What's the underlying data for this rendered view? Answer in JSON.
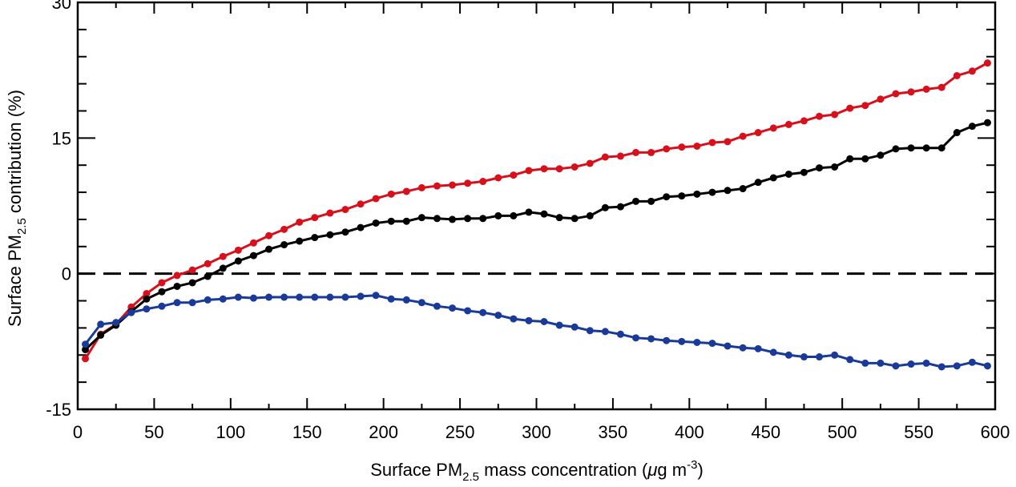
{
  "chart_data": {
    "type": "line",
    "title": "",
    "xlabel": {
      "pre": "Surface PM",
      "sub": "2.5",
      "mid": " mass concentration (",
      "mu": "μ",
      "post": "g m",
      "sup": "-3",
      "end": ")"
    },
    "ylabel": {
      "pre": "Surface PM",
      "sub": "2.5",
      "post": " contribution (%)"
    },
    "xlim": [
      0,
      600
    ],
    "ylim": [
      -15,
      30
    ],
    "xticks": [
      "0",
      "50",
      "100",
      "150",
      "200",
      "250",
      "300",
      "350",
      "400",
      "450",
      "500",
      "550",
      "600"
    ],
    "yticks": [
      "-15",
      "0",
      "15",
      "30"
    ],
    "grid": false,
    "reference_line": {
      "y": 0,
      "style": "dashed",
      "color": "#000000"
    },
    "x": [
      5,
      15,
      25,
      35,
      45,
      55,
      65,
      75,
      85,
      95,
      105,
      115,
      125,
      135,
      145,
      155,
      165,
      175,
      185,
      195,
      205,
      215,
      225,
      235,
      245,
      255,
      265,
      275,
      285,
      295,
      305,
      315,
      325,
      335,
      345,
      355,
      365,
      375,
      385,
      395,
      405,
      415,
      425,
      435,
      445,
      455,
      465,
      475,
      485,
      495,
      505,
      515,
      525,
      535,
      545,
      555,
      565,
      575,
      585,
      595
    ],
    "series": [
      {
        "color": "#d7101b",
        "values": [
          -9.4,
          -6.7,
          -5.6,
          -3.7,
          -2.2,
          -1.0,
          -0.2,
          0.4,
          1.1,
          1.9,
          2.6,
          3.4,
          4.2,
          4.9,
          5.7,
          6.2,
          6.7,
          7.1,
          7.7,
          8.3,
          8.8,
          9.1,
          9.5,
          9.7,
          9.8,
          10.0,
          10.2,
          10.6,
          10.9,
          11.4,
          11.6,
          11.6,
          11.8,
          12.2,
          12.9,
          13.0,
          13.4,
          13.4,
          13.8,
          14.0,
          14.1,
          14.5,
          14.6,
          15.2,
          15.6,
          16.1,
          16.5,
          16.9,
          17.4,
          17.6,
          18.3,
          18.6,
          19.3,
          19.9,
          20.1,
          20.4,
          20.6,
          21.9,
          22.4,
          23.3
        ]
      },
      {
        "color": "#000000",
        "values": [
          -8.4,
          -6.8,
          -5.7,
          -4.2,
          -2.8,
          -2.0,
          -1.4,
          -1.0,
          -0.3,
          0.6,
          1.4,
          2.0,
          2.7,
          3.2,
          3.6,
          4.0,
          4.3,
          4.6,
          5.1,
          5.6,
          5.8,
          5.8,
          6.2,
          6.1,
          6.0,
          6.1,
          6.1,
          6.4,
          6.4,
          6.8,
          6.6,
          6.2,
          6.1,
          6.4,
          7.3,
          7.4,
          8.0,
          8.0,
          8.5,
          8.6,
          8.8,
          9.0,
          9.2,
          9.4,
          10.1,
          10.6,
          11.0,
          11.2,
          11.7,
          11.8,
          12.7,
          12.7,
          13.1,
          13.8,
          13.9,
          13.9,
          13.9,
          15.6,
          16.3,
          16.7
        ]
      },
      {
        "color": "#1a3a9a",
        "values": [
          -7.8,
          -5.6,
          -5.4,
          -4.3,
          -3.9,
          -3.6,
          -3.2,
          -3.2,
          -2.9,
          -2.8,
          -2.6,
          -2.7,
          -2.6,
          -2.6,
          -2.6,
          -2.6,
          -2.6,
          -2.6,
          -2.5,
          -2.4,
          -2.8,
          -2.9,
          -3.2,
          -3.6,
          -3.8,
          -4.1,
          -4.3,
          -4.6,
          -5.0,
          -5.2,
          -5.3,
          -5.7,
          -5.9,
          -6.3,
          -6.4,
          -6.7,
          -7.1,
          -7.2,
          -7.4,
          -7.5,
          -7.6,
          -7.7,
          -8.0,
          -8.2,
          -8.3,
          -8.7,
          -9.0,
          -9.2,
          -9.2,
          -9.0,
          -9.5,
          -9.9,
          -9.9,
          -10.2,
          -10.0,
          -9.9,
          -10.3,
          -10.2,
          -9.8,
          -10.2
        ]
      }
    ]
  }
}
